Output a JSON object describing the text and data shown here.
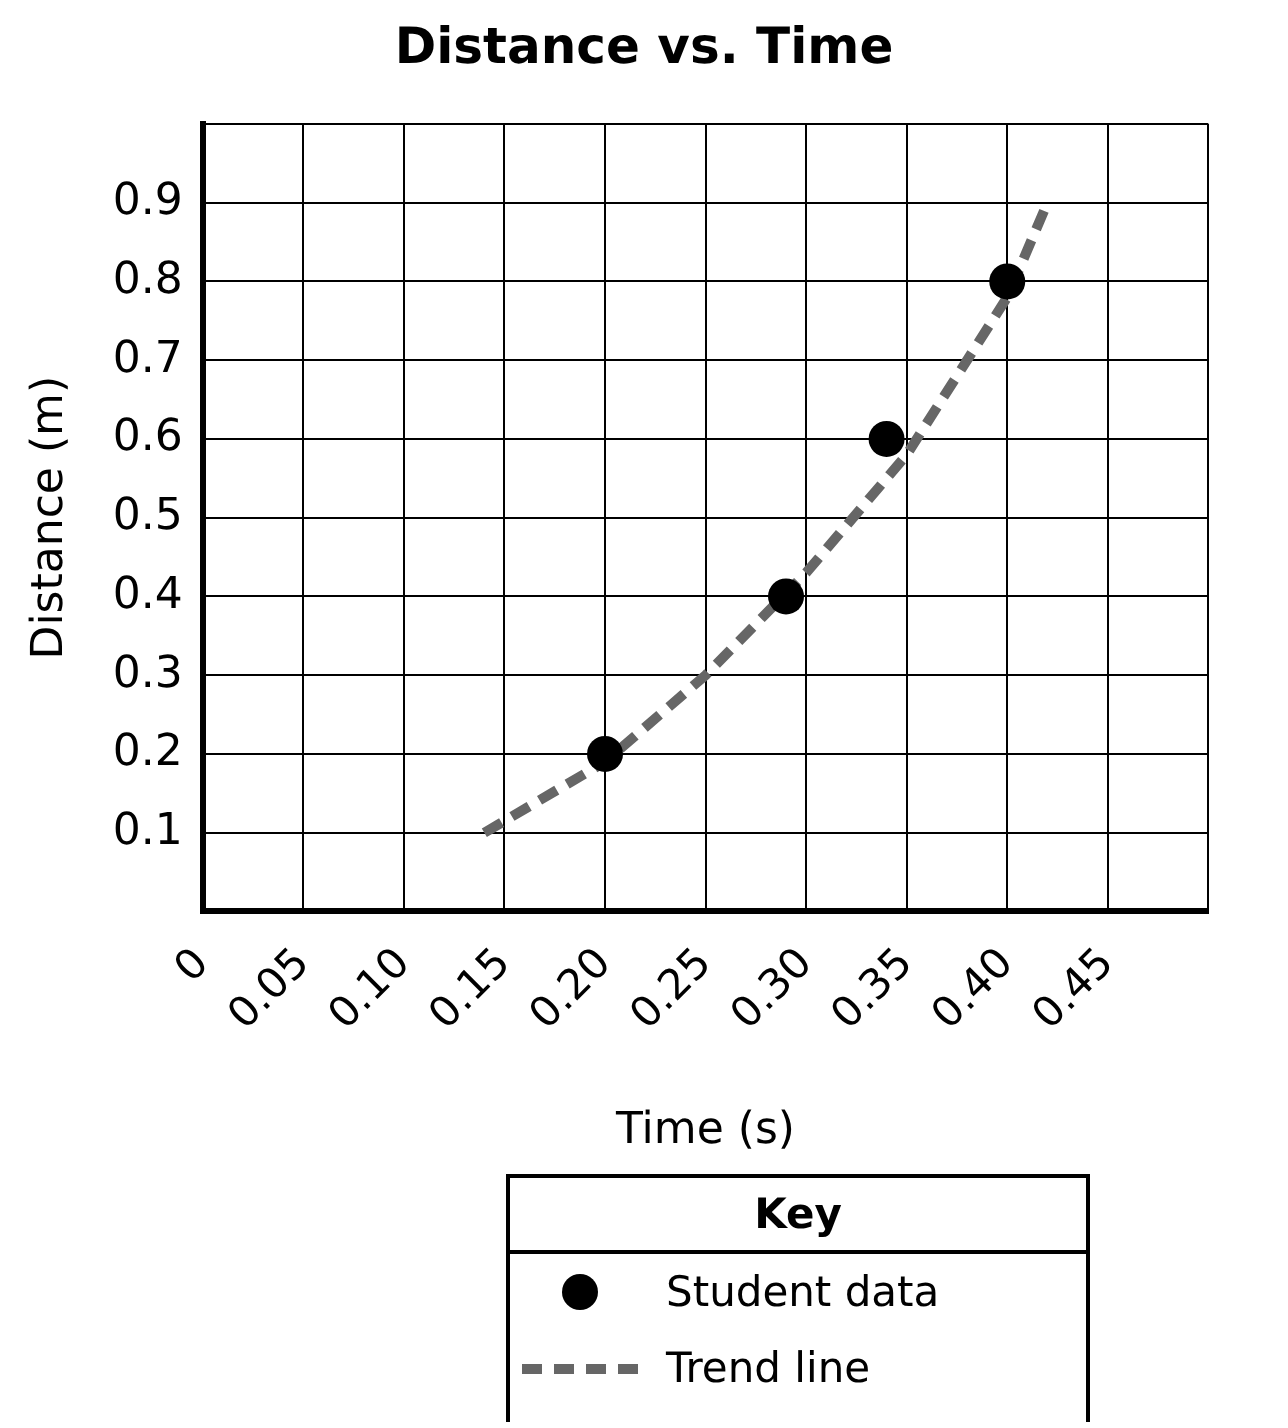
{
  "chart_data": {
    "type": "scatter",
    "title": "Distance vs. Time",
    "xlabel": "Time (s)",
    "ylabel": "Distance (m)",
    "legend_title": "Key",
    "legend": "bottom",
    "grid": true,
    "xlim": [
      0,
      0.5
    ],
    "ylim": [
      0,
      1.0
    ],
    "xticks": [
      {
        "value": 0,
        "label": "0"
      },
      0.05,
      {
        "value": 0.1,
        "label": "0.10"
      },
      0.15,
      {
        "value": 0.2,
        "label": "0.20"
      },
      0.25,
      {
        "value": 0.3,
        "label": "0.30"
      },
      0.35,
      {
        "value": 0.4,
        "label": "0.40"
      },
      0.45,
      {
        "value": 0.5,
        "label": null
      }
    ],
    "yticks": [
      {
        "value": 0,
        "label": null
      },
      0.1,
      0.2,
      0.3,
      0.4,
      0.5,
      0.6,
      0.7,
      0.8,
      0.9,
      {
        "value": 1.0,
        "label": null
      }
    ],
    "series": [
      {
        "name": "Student data",
        "type": "scatter",
        "color": "#000000",
        "marker": "circle",
        "x": [
          0.2,
          0.29,
          0.34,
          0.4
        ],
        "values": [
          0.2,
          0.4,
          0.6,
          0.8
        ]
      },
      {
        "name": "Trend line",
        "type": "line",
        "color": "#666666",
        "line_style": "dashed",
        "marker": "none",
        "x": [
          0.14,
          0.2,
          0.25,
          0.3,
          0.35,
          0.4,
          0.42
        ],
        "values": [
          0.1,
          0.19,
          0.3,
          0.43,
          0.58,
          0.78,
          0.9
        ]
      }
    ]
  }
}
